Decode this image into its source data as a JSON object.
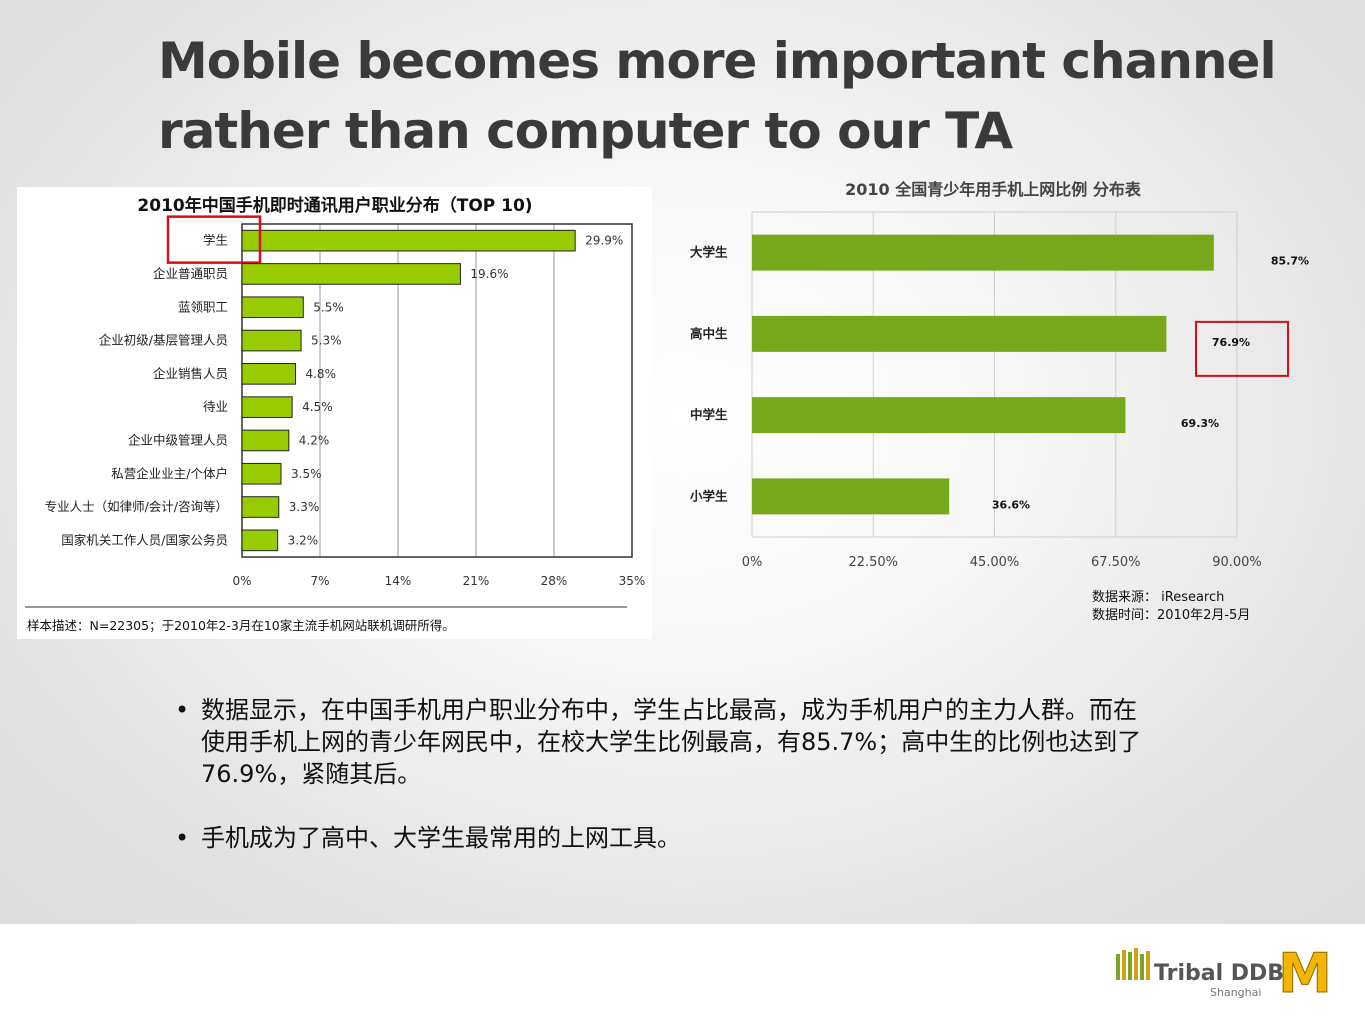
{
  "title": {
    "line1": "Mobile becomes more important channel",
    "line2": "rather than computer to our TA"
  },
  "chart_data": [
    {
      "type": "bar",
      "orientation": "horizontal",
      "title": "2010年中国手机即时通讯用户职业分布（TOP 10)",
      "categories": [
        "学生",
        "企业普通职员",
        "蓝领职工",
        "企业初级/基层管理人员",
        "企业销售人员",
        "待业",
        "企业中级管理人员",
        "私营企业业主/个体户",
        "专业人士（如律师/会计/咨询等）",
        "国家机关工作人员/国家公务员"
      ],
      "values": [
        29.9,
        19.6,
        5.5,
        5.3,
        4.8,
        4.5,
        4.2,
        3.5,
        3.3,
        3.2
      ],
      "value_labels": [
        "29.9%",
        "19.6%",
        "5.5%",
        "5.3%",
        "4.8%",
        "4.5%",
        "4.2%",
        "3.5%",
        "3.3%",
        "3.2%"
      ],
      "xlim": [
        0,
        35
      ],
      "xticks": [
        "0%",
        "7%",
        "14%",
        "21%",
        "28%",
        "35%"
      ],
      "grid": true,
      "highlight": "学生",
      "bar_color": "#99cc00",
      "note": "样本描述：N=22305；于2010年2-3月在10家主流手机网站联机调研所得。"
    },
    {
      "type": "bar",
      "orientation": "horizontal",
      "title": "2010 全国青少年用手机上网比例 分布表",
      "categories": [
        "大学生",
        "高中生",
        "中学生",
        "小学生"
      ],
      "values": [
        85.7,
        76.9,
        69.3,
        36.6
      ],
      "value_labels": [
        "85.7%",
        "76.9%",
        "69.3%",
        "36.6%"
      ],
      "xlim": [
        0,
        90
      ],
      "xticks": [
        "0%",
        "22.50%",
        "45.00%",
        "67.50%",
        "90.00%"
      ],
      "grid": true,
      "highlight": "76.9%",
      "bar_color": "#77a81c",
      "source_line1": "数据来源： iResearch",
      "source_line2": "数据时间：2010年2月-5月"
    }
  ],
  "bullets": [
    "数据显示，在中国手机用户职业分布中，学生占比最高，成为手机用户的主力人群。而在使用手机上网的青少年网民中，在校大学生比例最高，有85.7%；高中生的比例也达到了76.9%，紧随其后。",
    "手机成为了高中、大学生最常用的上网工具。"
  ],
  "bullet_symbol": "•",
  "logos": {
    "brand_text": "Tribal DDB",
    "brand_sub": "Shanghai",
    "mark": "M"
  }
}
